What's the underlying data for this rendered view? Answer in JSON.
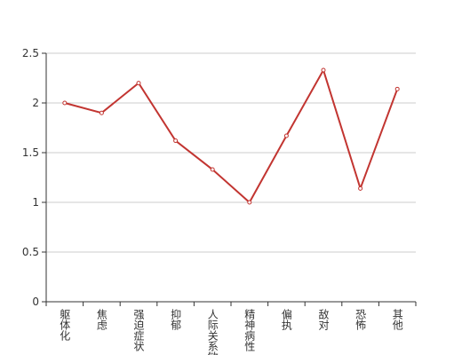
{
  "chart_data": {
    "type": "line",
    "categories": [
      "躯体化",
      "焦虑",
      "强迫症状",
      "抑郁",
      "人际关系敏感",
      "精神病性",
      "偏执",
      "敌对",
      "恐怖",
      "其他"
    ],
    "values": [
      2.0,
      1.9,
      2.2,
      1.62,
      1.33,
      1.0,
      1.67,
      2.33,
      1.14,
      2.14
    ],
    "color": "#c23531",
    "ylim": [
      0,
      2.5
    ],
    "yticks": [
      0,
      0.5,
      1,
      1.5,
      2,
      2.5
    ],
    "grid": true
  }
}
